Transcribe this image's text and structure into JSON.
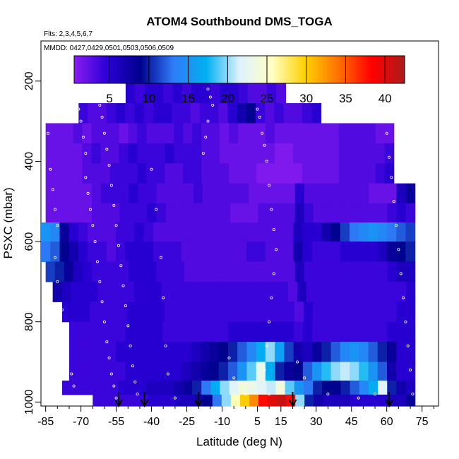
{
  "chart_data": {
    "type": "heatmap",
    "title": "ATOM4 Southbound DMS_TOGA",
    "flights_note": "Flts: 2,3,4,5,6,7",
    "dates_note": "MMDD: 0427,0429,0501,0503,0506,0509",
    "xlabel": "Latitude (deg N)",
    "ylabel": "PSXC (mbar)",
    "xlim": [
      -87,
      82
    ],
    "ylim": [
      1010,
      100
    ],
    "x_ticks": [
      -85,
      -70,
      -55,
      -40,
      -25,
      -10,
      5,
      15,
      30,
      45,
      60,
      75
    ],
    "y_ticks": [
      200,
      400,
      600,
      800,
      1000
    ],
    "colorbar": {
      "range": [
        0.5,
        42.5
      ],
      "ticks": [
        5,
        10,
        15,
        20,
        25,
        30,
        35,
        40
      ],
      "colors": [
        "#8a1cf0",
        "#2a00d6",
        "#00008c",
        "#2e7cf8",
        "#00b0f0",
        "#dff2ff",
        "#ffffc0",
        "#ffd000",
        "#ff7000",
        "#ff0000",
        "#aa1c1c"
      ]
    },
    "layers": [
      {
        "p": 180,
        "x0": -17,
        "x1": -15,
        "values": [
          10
        ]
      },
      {
        "p": 230,
        "x0": -51,
        "x1": 17,
        "values": [
          5,
          4,
          5,
          5,
          4,
          5,
          4,
          5,
          5,
          4,
          5,
          5,
          4,
          3,
          3,
          4,
          3
        ]
      },
      {
        "p": 280,
        "x0": -71,
        "x1": 32,
        "values": [
          4,
          3,
          3,
          4,
          5,
          4,
          5,
          4,
          5,
          5,
          4,
          4,
          3,
          4,
          4,
          3,
          5,
          7,
          9,
          4,
          3,
          4,
          3,
          3,
          4,
          5
        ]
      },
      {
        "p": 330,
        "x0": -85,
        "x1": 63,
        "values": [
          2,
          2,
          2,
          3,
          2,
          3,
          3,
          3,
          2,
          3,
          4,
          3,
          3,
          3,
          4,
          3,
          4,
          3,
          3,
          2,
          3,
          2,
          2,
          2,
          3,
          2,
          2,
          2,
          2,
          2,
          2,
          2,
          3,
          3,
          3,
          3,
          2,
          2
        ]
      },
      {
        "p": 380,
        "x0": -85,
        "x1": 63,
        "values": [
          2,
          2,
          2,
          2,
          3,
          4,
          3,
          3,
          4,
          5,
          4,
          4,
          4,
          5,
          4,
          4,
          4,
          3,
          3,
          2,
          2,
          2,
          2,
          2,
          2,
          1,
          1,
          2,
          2,
          2,
          2,
          2,
          3,
          3,
          3,
          3,
          3,
          4
        ]
      },
      {
        "p": 430,
        "x0": -85,
        "x1": 63,
        "values": [
          2,
          2,
          2,
          2,
          3,
          3,
          3,
          4,
          4,
          4,
          5,
          4,
          4,
          3,
          3,
          4,
          4,
          3,
          3,
          3,
          2,
          2,
          2,
          1,
          1,
          1,
          1,
          1,
          2,
          2,
          2,
          2,
          3,
          3,
          3,
          3,
          4,
          5
        ]
      },
      {
        "p": 480,
        "x0": -85,
        "x1": 72,
        "values": [
          2,
          2,
          2,
          2,
          2,
          3,
          4,
          4,
          4,
          5,
          4,
          4,
          3,
          3,
          3,
          3,
          4,
          3,
          3,
          3,
          3,
          3,
          2,
          2,
          2,
          2,
          2,
          5,
          3,
          3,
          3,
          3,
          3,
          3,
          3,
          2,
          2,
          2,
          6,
          8
        ]
      },
      {
        "p": 530,
        "x0": -85,
        "x1": 72,
        "values": [
          2,
          2,
          2,
          2,
          2,
          3,
          3,
          3,
          4,
          4,
          4,
          5,
          4,
          3,
          3,
          3,
          3,
          3,
          3,
          3,
          2,
          2,
          2,
          3,
          3,
          3,
          3,
          6,
          4,
          3,
          3,
          3,
          3,
          3,
          3,
          3,
          3,
          4,
          5,
          4
        ]
      },
      {
        "p": 575,
        "x0": -87,
        "x1": 72,
        "values": [
          15,
          14,
          8,
          5,
          4,
          3,
          3,
          3,
          4,
          4,
          5,
          4,
          3,
          3,
          3,
          3,
          3,
          3,
          3,
          3,
          3,
          3,
          3,
          3,
          3,
          3,
          3,
          6,
          5,
          5,
          7,
          9,
          11,
          13,
          14,
          15,
          14,
          13,
          12,
          11
        ]
      },
      {
        "p": 625,
        "x0": -87,
        "x1": 72,
        "values": [
          13,
          12,
          9,
          7,
          5,
          4,
          4,
          3,
          4,
          5,
          5,
          5,
          4,
          4,
          4,
          3,
          3,
          3,
          3,
          3,
          3,
          3,
          4,
          4,
          3,
          3,
          3,
          7,
          5,
          4,
          4,
          4,
          5,
          5,
          5,
          5,
          6,
          8,
          9,
          10
        ]
      },
      {
        "p": 675,
        "x0": -85,
        "x1": 72,
        "values": [
          11,
          10,
          8,
          6,
          5,
          4,
          4,
          4,
          4,
          5,
          5,
          5,
          4,
          4,
          4,
          3,
          3,
          3,
          3,
          3,
          3,
          3,
          3,
          3,
          3,
          3,
          3,
          6,
          4,
          4,
          4,
          4,
          4,
          4,
          4,
          4,
          4,
          5,
          6,
          6
        ]
      },
      {
        "p": 725,
        "x0": -82,
        "x1": 72,
        "values": [
          7,
          6,
          5,
          5,
          5,
          4,
          4,
          4,
          4,
          5,
          5,
          5,
          4,
          4,
          4,
          4,
          4,
          4,
          4,
          4,
          4,
          4,
          4,
          4,
          4,
          4,
          3,
          6,
          4,
          4,
          4,
          4,
          4,
          4,
          4,
          4,
          4,
          4,
          4,
          5
        ]
      },
      {
        "p": 775,
        "x0": -78,
        "x1": 72,
        "values": [
          5,
          5,
          5,
          4,
          4,
          4,
          4,
          5,
          5,
          5,
          5,
          4,
          4,
          4,
          4,
          4,
          4,
          4,
          4,
          4,
          4,
          4,
          4,
          4,
          4,
          3,
          5,
          4,
          4,
          4,
          4,
          4,
          4,
          4,
          4,
          4,
          5,
          5
        ]
      },
      {
        "p": 825,
        "x0": -75,
        "x1": 72,
        "values": [
          4,
          4,
          4,
          4,
          4,
          4,
          5,
          5,
          5,
          5,
          4,
          4,
          4,
          4,
          4,
          4,
          4,
          5,
          5,
          5,
          5,
          5,
          5,
          5,
          4,
          5,
          4,
          4,
          4,
          4,
          4,
          4,
          4,
          4,
          5,
          5,
          5
        ]
      },
      {
        "p": 875,
        "x0": -75,
        "x1": 72,
        "values": [
          4,
          4,
          4,
          4,
          4,
          5,
          5,
          5,
          5,
          5,
          5,
          5,
          5,
          6,
          7,
          8,
          9,
          10,
          12,
          14,
          17,
          20,
          16,
          11,
          7,
          6,
          8,
          10,
          12,
          14,
          15,
          14,
          12,
          10,
          8,
          5,
          5
        ]
      },
      {
        "p": 925,
        "x0": -75,
        "x1": 72,
        "values": [
          4,
          4,
          4,
          4,
          4,
          4,
          5,
          5,
          5,
          5,
          5,
          5,
          6,
          7,
          8,
          9,
          10,
          12,
          15,
          19,
          23,
          17,
          10,
          8,
          9,
          12,
          15,
          18,
          20,
          21,
          20,
          18,
          15,
          12,
          7,
          5,
          5
        ]
      },
      {
        "p": 968,
        "x0": -78,
        "x1": 72,
        "values": [
          4,
          4,
          4,
          4,
          4,
          4,
          5,
          5,
          5,
          6,
          6,
          6,
          7,
          8,
          10,
          13,
          17,
          20,
          22,
          24,
          23,
          22,
          21,
          24,
          19,
          15,
          13,
          10,
          9,
          9,
          10,
          12,
          14,
          17,
          22,
          10,
          7,
          6
        ]
      },
      {
        "p": 995,
        "x0": -65,
        "x1": 72,
        "values": [
          4,
          4,
          4,
          4,
          4,
          4,
          5,
          5,
          5,
          6,
          6,
          7,
          9,
          13,
          20,
          26,
          30,
          33,
          38,
          40,
          41,
          38,
          20,
          10,
          7,
          6,
          6,
          6,
          5,
          5,
          5,
          5,
          6,
          6,
          8
        ]
      }
    ],
    "markers_lat": [
      -54,
      -43,
      -20,
      20,
      61
    ],
    "sample_points": [
      [
        -84,
        330
      ],
      [
        -83,
        420
      ],
      [
        -82,
        470
      ],
      [
        -81,
        520
      ],
      [
        -80,
        560
      ],
      [
        -81,
        640
      ],
      [
        -80,
        700
      ],
      [
        -78,
        770
      ],
      [
        -77,
        830
      ],
      [
        -76,
        880
      ],
      [
        -74,
        930
      ],
      [
        -73,
        960
      ],
      [
        -71,
        270
      ],
      [
        -70,
        300
      ],
      [
        -69,
        340
      ],
      [
        -68,
        380
      ],
      [
        -68,
        440
      ],
      [
        -67,
        480
      ],
      [
        -66,
        520
      ],
      [
        -65,
        560
      ],
      [
        -64,
        600
      ],
      [
        -63,
        650
      ],
      [
        -62,
        700
      ],
      [
        -61,
        750
      ],
      [
        -60,
        800
      ],
      [
        -59,
        850
      ],
      [
        -58,
        890
      ],
      [
        -57,
        930
      ],
      [
        -56,
        960
      ],
      [
        -55,
        990
      ],
      [
        -63,
        240
      ],
      [
        -62,
        260
      ],
      [
        -61,
        290
      ],
      [
        -60,
        330
      ],
      [
        -59,
        370
      ],
      [
        -58,
        410
      ],
      [
        -57,
        460
      ],
      [
        -56,
        510
      ],
      [
        -55,
        560
      ],
      [
        -54,
        610
      ],
      [
        -53,
        660
      ],
      [
        -52,
        710
      ],
      [
        -51,
        760
      ],
      [
        -50,
        810
      ],
      [
        -49,
        860
      ],
      [
        -48,
        910
      ],
      [
        -47,
        950
      ],
      [
        -46,
        980
      ],
      [
        -40,
        420
      ],
      [
        -38,
        520
      ],
      [
        -36,
        640
      ],
      [
        -35,
        740
      ],
      [
        -34,
        860
      ],
      [
        -33,
        930
      ],
      [
        -30,
        990
      ],
      [
        -16,
        220
      ],
      [
        -15,
        240
      ],
      [
        -14,
        260
      ],
      [
        -16,
        300
      ],
      [
        -17,
        340
      ],
      [
        -18,
        380
      ],
      [
        -7,
        890
      ],
      [
        -5,
        940
      ],
      [
        -4,
        990
      ],
      [
        0,
        980
      ],
      [
        5,
        270
      ],
      [
        6,
        290
      ],
      [
        7,
        330
      ],
      [
        8,
        360
      ],
      [
        9,
        400
      ],
      [
        10,
        460
      ],
      [
        11,
        520
      ],
      [
        12,
        570
      ],
      [
        13,
        620
      ],
      [
        12,
        680
      ],
      [
        11,
        740
      ],
      [
        10,
        800
      ],
      [
        9,
        860
      ],
      [
        8,
        920
      ],
      [
        10,
        980
      ],
      [
        22,
        900
      ],
      [
        25,
        940
      ],
      [
        35,
        980
      ],
      [
        48,
        990
      ],
      [
        55,
        980
      ],
      [
        60,
        330
      ],
      [
        61,
        390
      ],
      [
        62,
        440
      ],
      [
        63,
        500
      ],
      [
        64,
        560
      ],
      [
        65,
        620
      ],
      [
        66,
        680
      ],
      [
        67,
        740
      ],
      [
        68,
        800
      ],
      [
        69,
        860
      ],
      [
        70,
        920
      ],
      [
        71,
        980
      ]
    ]
  }
}
